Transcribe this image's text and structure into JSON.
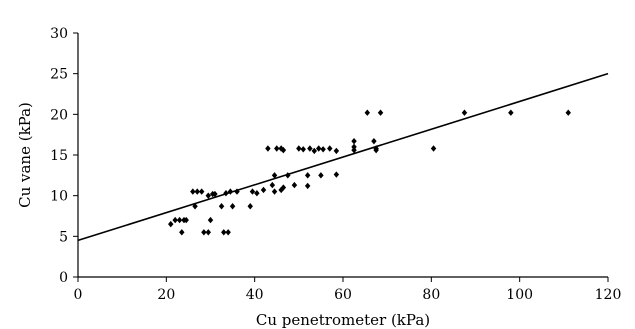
{
  "chart_data": {
    "type": "scatter",
    "title": "",
    "xlabel": "Cu penetrometer (kPa)",
    "ylabel": "Cu vane (kPa)",
    "xlim": [
      0,
      120
    ],
    "ylim": [
      0,
      30
    ],
    "xticks": [
      0,
      20,
      40,
      60,
      80,
      100,
      120
    ],
    "yticks": [
      0,
      5,
      10,
      15,
      20,
      25,
      30
    ],
    "xtick_labels": [
      "0",
      "20",
      "40",
      "60",
      "80",
      "100",
      "120"
    ],
    "ytick_labels": [
      "0",
      "5",
      "10",
      "15",
      "20",
      "25",
      "30"
    ],
    "grid": false,
    "legend": "none",
    "marker": "diamond",
    "marker_color": "#000000",
    "points": [
      [
        21.0,
        6.5
      ],
      [
        22.0,
        7.0
      ],
      [
        23.0,
        7.0
      ],
      [
        24.0,
        7.0
      ],
      [
        23.5,
        5.5
      ],
      [
        24.5,
        7.0
      ],
      [
        26.0,
        10.5
      ],
      [
        27.0,
        10.5
      ],
      [
        26.5,
        8.7
      ],
      [
        28.0,
        10.5
      ],
      [
        28.5,
        5.5
      ],
      [
        29.5,
        5.5
      ],
      [
        29.5,
        10.0
      ],
      [
        30.5,
        10.2
      ],
      [
        30.0,
        7.0
      ],
      [
        31.0,
        10.2
      ],
      [
        32.5,
        8.7
      ],
      [
        33.0,
        5.5
      ],
      [
        34.0,
        5.5
      ],
      [
        33.5,
        10.3
      ],
      [
        34.5,
        10.5
      ],
      [
        35.0,
        8.7
      ],
      [
        36.0,
        10.5
      ],
      [
        39.0,
        8.7
      ],
      [
        39.5,
        10.5
      ],
      [
        40.5,
        10.3
      ],
      [
        42.0,
        10.7
      ],
      [
        43.0,
        15.8
      ],
      [
        44.0,
        11.3
      ],
      [
        44.5,
        12.5
      ],
      [
        45.0,
        15.8
      ],
      [
        44.5,
        10.5
      ],
      [
        46.0,
        10.7
      ],
      [
        46.5,
        11.0
      ],
      [
        46.0,
        15.8
      ],
      [
        46.5,
        15.6
      ],
      [
        47.5,
        12.5
      ],
      [
        49.0,
        11.3
      ],
      [
        50.0,
        15.8
      ],
      [
        51.0,
        15.7
      ],
      [
        52.0,
        12.5
      ],
      [
        52.5,
        15.8
      ],
      [
        52.0,
        11.2
      ],
      [
        53.5,
        15.5
      ],
      [
        54.5,
        15.8
      ],
      [
        55.0,
        12.5
      ],
      [
        55.5,
        15.7
      ],
      [
        57.0,
        15.8
      ],
      [
        58.5,
        12.6
      ],
      [
        58.5,
        15.5
      ],
      [
        62.5,
        15.6
      ],
      [
        62.5,
        16.0
      ],
      [
        62.5,
        16.7
      ],
      [
        65.5,
        20.2
      ],
      [
        67.0,
        16.7
      ],
      [
        67.5,
        15.6
      ],
      [
        68.5,
        20.2
      ],
      [
        67.5,
        15.8
      ],
      [
        80.5,
        15.8
      ],
      [
        87.5,
        20.2
      ],
      [
        98.0,
        20.2
      ],
      [
        111.0,
        20.2
      ]
    ],
    "trendline": {
      "x": [
        0,
        120
      ],
      "y": [
        4.5,
        25.0
      ]
    }
  }
}
